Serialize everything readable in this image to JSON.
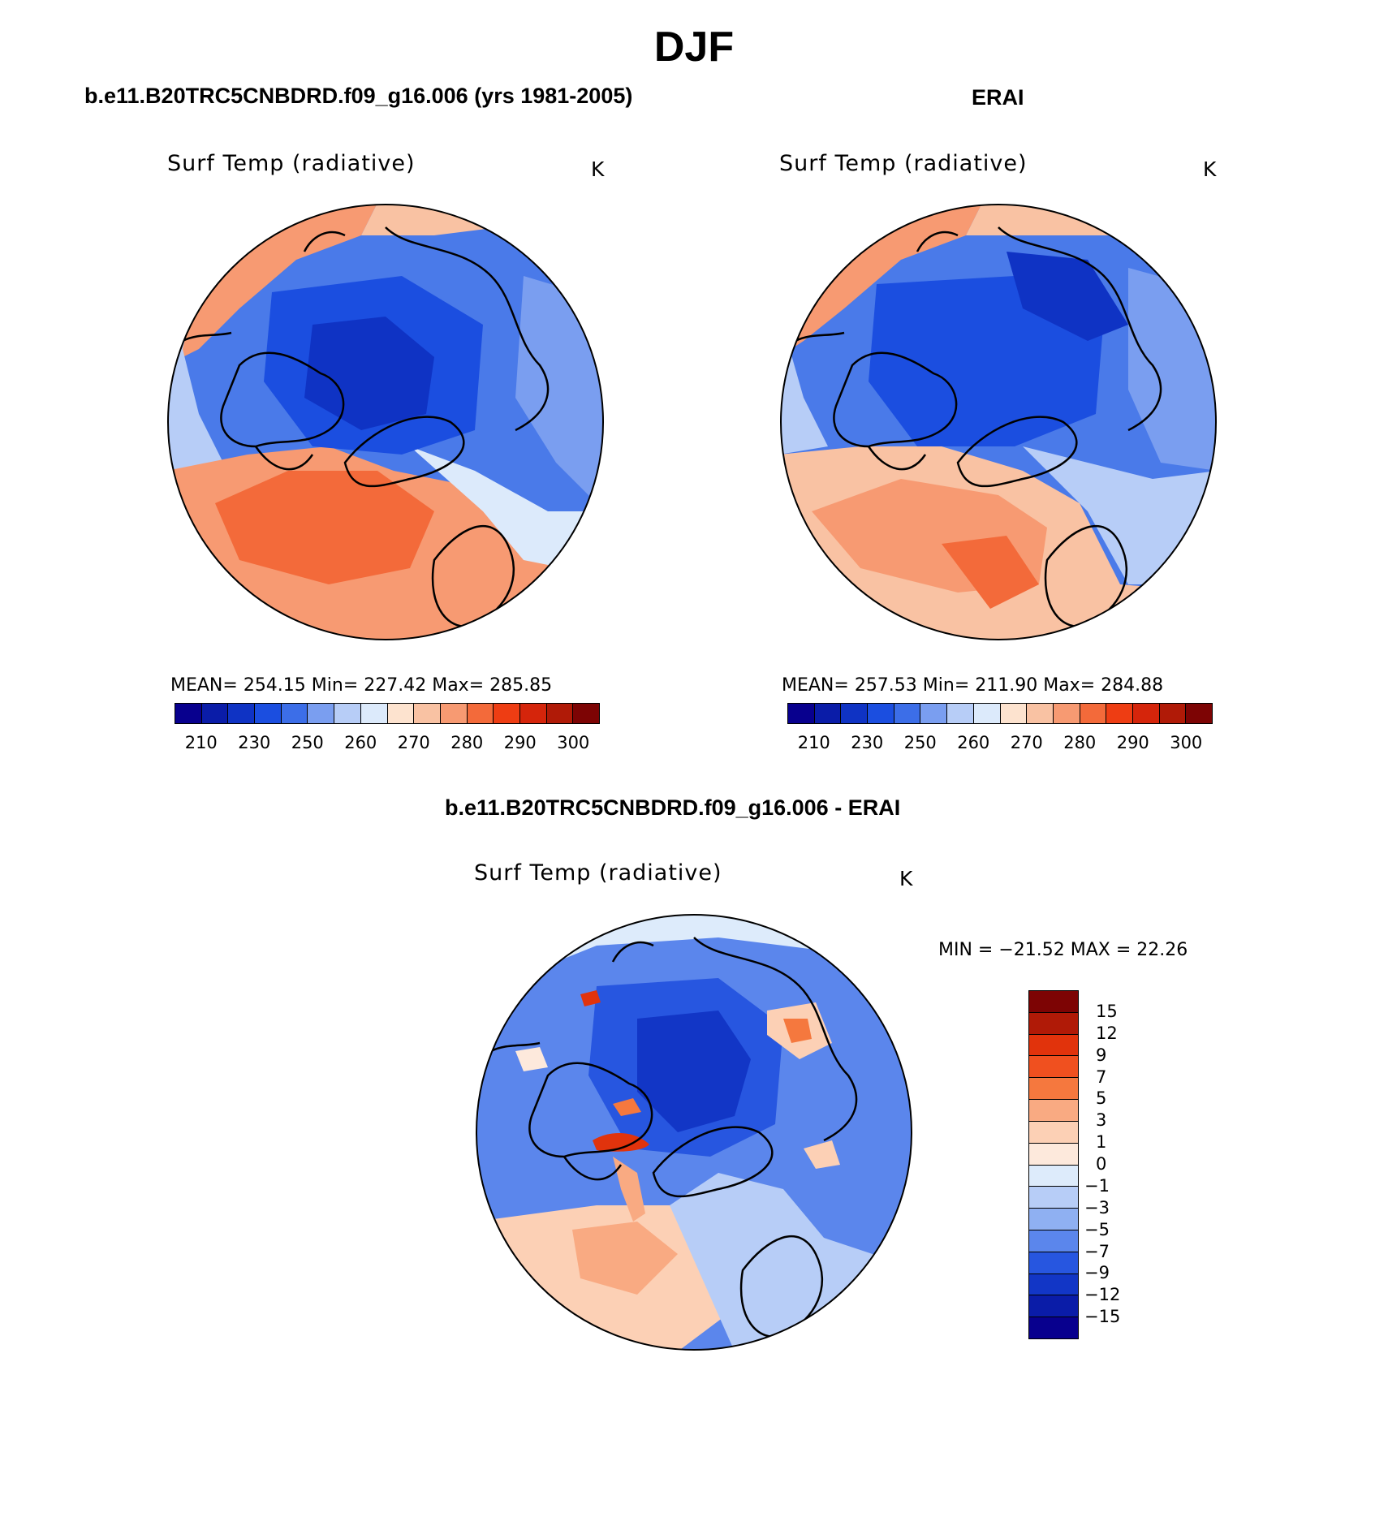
{
  "main_title": "DJF",
  "panels": [
    {
      "title": "b.e11.B20TRC5CNBDRD.f09_g16.006 (yrs 1981-2005)",
      "variable": "Surf Temp (radiative)",
      "units": "K",
      "stats": "MEAN= 254.15   Min= 227.42   Max= 285.85"
    },
    {
      "title": "ERAI",
      "variable": "Surf Temp (radiative)",
      "units": "K",
      "stats": "MEAN= 257.53   Min= 211.90   Max= 284.88"
    },
    {
      "title": "b.e11.B20TRC5CNBDRD.f09_g16.006 - ERAI",
      "variable": "Surf Temp (radiative)",
      "units": "K",
      "stats": "MIN = −21.52  MAX =   22.26"
    }
  ],
  "abs_colorbar": {
    "ticks": [
      "210",
      "230",
      "250",
      "260",
      "270",
      "280",
      "290",
      "300"
    ],
    "colors": [
      "#08008e",
      "#0a1ca8",
      "#0f33c4",
      "#1b4ee0",
      "#3c6ee8",
      "#7a9ef0",
      "#b7cdf7",
      "#dceafb",
      "#fde3cf",
      "#f9c2a3",
      "#f79a72",
      "#f36a3a",
      "#ee3d13",
      "#d5250b",
      "#b01a07",
      "#7d0404"
    ]
  },
  "diff_colorbar": {
    "ticks": [
      "15",
      "12",
      "9",
      "7",
      "5",
      "3",
      "1",
      "0",
      "−1",
      "−3",
      "−5",
      "−7",
      "−9",
      "−12",
      "−15"
    ],
    "colors": [
      "#7d0404",
      "#b01a07",
      "#e1330c",
      "#f0501f",
      "#f5783e",
      "#f9aa82",
      "#fcd0b5",
      "#fde9dc",
      "#ddebfb",
      "#b7cdf7",
      "#8fb0f2",
      "#5b86ec",
      "#2756e0",
      "#1236c6",
      "#0a1ca8",
      "#08008e"
    ]
  }
}
